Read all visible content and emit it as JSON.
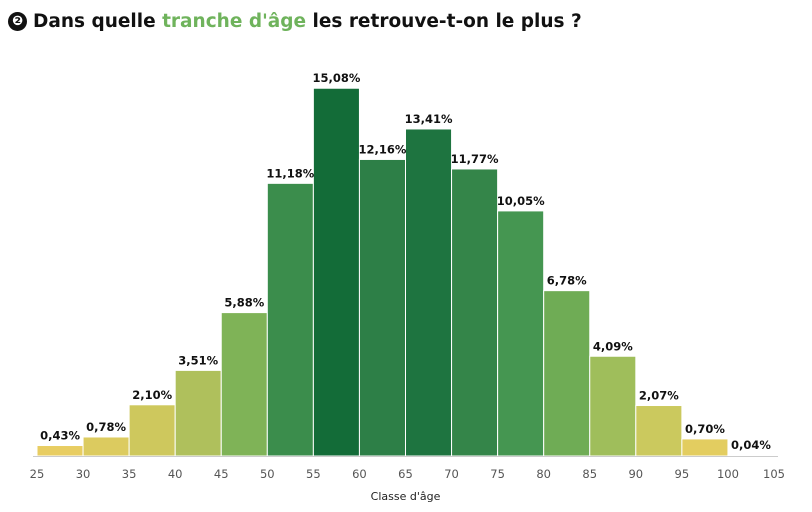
{
  "header": {
    "badge": "❷",
    "title_before": "Dans quelle ",
    "title_highlight": "tranche d'âge",
    "title_after": " les retrouve-t-on le plus ?",
    "highlight_color": "#6fb35c"
  },
  "chart_data": {
    "type": "bar",
    "title": "Dans quelle tranche d'âge les retrouve-t-on le plus ?",
    "xlabel": "Classe d'âge",
    "ylabel": "",
    "bin_edges": [
      25,
      30,
      35,
      40,
      45,
      50,
      55,
      60,
      65,
      70,
      75,
      80,
      85,
      90,
      95,
      100,
      105
    ],
    "values": [
      0.43,
      0.78,
      2.1,
      3.51,
      5.88,
      11.18,
      15.08,
      12.16,
      13.41,
      11.77,
      10.05,
      6.78,
      4.09,
      2.07,
      0.7,
      0.04
    ],
    "labels": [
      "0,43%",
      "0,78%",
      "2,10%",
      "3,51%",
      "5,88%",
      "11,18%",
      "15,08%",
      "12,16%",
      "13,41%",
      "11,77%",
      "10,05%",
      "6,78%",
      "4,09%",
      "2,07%",
      "0,70%",
      "0,04%"
    ],
    "colors": [
      "#e8cd62",
      "#dccb5f",
      "#cec85d",
      "#afc05c",
      "#7fb357",
      "#3b8d4c",
      "#136c38",
      "#2d7f47",
      "#1e7440",
      "#348549",
      "#459651",
      "#6fac55",
      "#9fbe5b",
      "#cbc95e",
      "#e3cd60",
      "#e8cd62"
    ],
    "ylim": [
      0,
      15.5
    ],
    "grid": false,
    "legend": "none"
  }
}
